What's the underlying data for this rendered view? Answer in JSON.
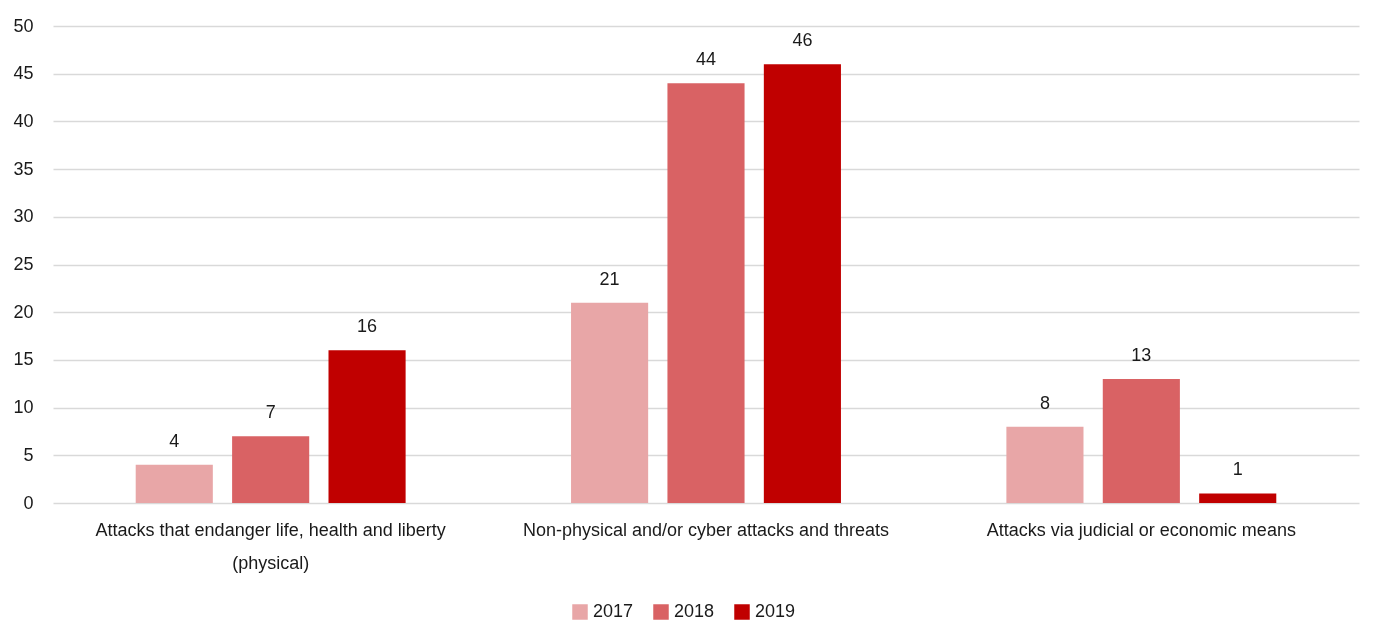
{
  "chart_data": {
    "type": "bar",
    "categories": [
      "Attacks that endanger life, health and liberty (physical)",
      "Non-physical and/or cyber attacks and threats",
      "Attacks via judicial or economic means"
    ],
    "series": [
      {
        "name": "2017",
        "color": "#e8a6a7",
        "values": [
          4,
          21,
          8
        ]
      },
      {
        "name": "2018",
        "color": "#d96264",
        "values": [
          7,
          44,
          13
        ]
      },
      {
        "name": "2019",
        "color": "#c00000",
        "values": [
          16,
          46,
          1
        ]
      }
    ],
    "ylim": [
      0,
      50
    ],
    "yticks": [
      0,
      5,
      10,
      15,
      20,
      25,
      30,
      35,
      40,
      45,
      50
    ],
    "grid": "y",
    "legend": "bottom",
    "data_labels": true
  }
}
